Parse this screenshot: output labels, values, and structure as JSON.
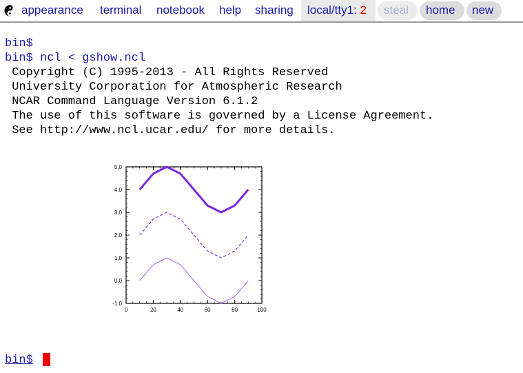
{
  "menubar": {
    "logo_icon": "yin-yang-icon",
    "items": [
      "appearance",
      "terminal",
      "notebook",
      "help",
      "sharing"
    ],
    "tty_label": "local/tty1:",
    "tty_count": "2",
    "steal": "steal",
    "home": "home",
    "new": "new"
  },
  "terminal": {
    "lines": [
      "bin$",
      "bin$ ncl < gshow.ncl",
      " Copyright (C) 1995-2013 - All Rights Reserved",
      " University Corporation for Atmospheric Research",
      " NCAR Command Language Version 6.1.2",
      " The use of this software is governed by a License Agreement.",
      " See http://www.ncl.ucar.edu/ for more details."
    ],
    "bottom_prompt": "bin$"
  },
  "chart_data": {
    "type": "line",
    "x": [
      10,
      20,
      30,
      40,
      50,
      60,
      70,
      80,
      90
    ],
    "series": [
      {
        "values": [
          4.0,
          4.7,
          5.0,
          4.7,
          4.0,
          3.3,
          3.0,
          3.3,
          4.0
        ],
        "style": "solid-thick",
        "color": "#7b2be2"
      },
      {
        "values": [
          2.0,
          2.7,
          3.0,
          2.7,
          2.0,
          1.3,
          1.0,
          1.3,
          2.0
        ],
        "style": "dashed",
        "color": "#7b2be2"
      },
      {
        "values": [
          0.0,
          0.7,
          1.0,
          0.7,
          0.0,
          -0.7,
          -1.0,
          -0.7,
          0.0
        ],
        "style": "thin",
        "color": "#a56df0"
      }
    ],
    "xlim": [
      0,
      100
    ],
    "ylim": [
      -1.0,
      5.0
    ],
    "xticks": [
      "0",
      "20",
      "40",
      "60",
      "80",
      "100"
    ],
    "yticks": [
      "-1.0",
      "0.0",
      "1.0",
      "2.0",
      "3.0",
      "4.0",
      "5.0"
    ],
    "title": "",
    "xlabel": "",
    "ylabel": ""
  }
}
